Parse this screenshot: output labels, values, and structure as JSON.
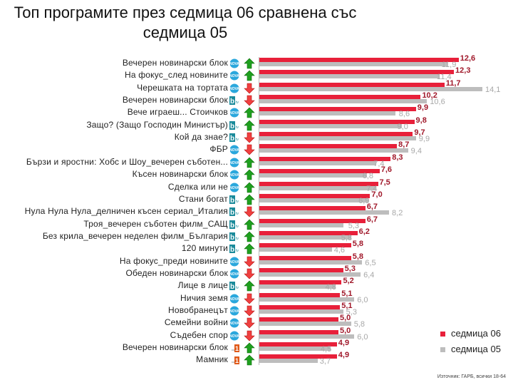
{
  "chart_data": {
    "type": "bar",
    "orientation": "horizontal",
    "title": "Топ програмите през седмица 06 сравнена със седмица 05",
    "title_lines": [
      "Топ програмите през седмица 06 сравнена със",
      "седмица 05"
    ],
    "categories": [
      "Вечерен новинарски блок",
      "На фокус_след новините",
      "Черешката на тортата",
      "Вечерен новинарски блок",
      "Вече играеш... Стоичков",
      "Защо? (Защо Господин Министър)",
      "Кой да знае?",
      "ФБР",
      "Бързи и яростни: Хобс и Шоу_вечерен съботен...",
      "Късен новинарски блок",
      "Сделка или не",
      "Стани богат",
      "Нула Нула Нула_делничен късен сериал_Италия",
      "Троя_вечерен съботен филм_САЩ",
      "Без крила_вечерен неделен филм_България",
      "120 минути",
      "На фокус_преди новините",
      "Обеден новинарски блок",
      "Лице в лице",
      "Ничия земя",
      "Новобранецът",
      "Семейни войни",
      "Съдебен спор",
      "Вечерен новинарски блок",
      "Мамник"
    ],
    "channels": [
      "nova",
      "nova",
      "nova",
      "btv",
      "nova",
      "btv",
      "btv",
      "nova",
      "nova",
      "nova",
      "nova",
      "btv",
      "btv",
      "btv",
      "btv",
      "btv",
      "nova",
      "nova",
      "btv",
      "nova",
      "nova",
      "nova",
      "nova",
      "bnt1",
      "bnt1"
    ],
    "trend": [
      "up",
      "up",
      "down",
      "down",
      "up",
      "up",
      "down",
      "down",
      "up",
      "up",
      "up",
      "up",
      "down",
      "up",
      "up",
      "up",
      "down",
      "down",
      "up",
      "down",
      "down",
      "down",
      "down",
      "up",
      "up"
    ],
    "series": [
      {
        "name": "седмица 06",
        "color": "#e8203a",
        "values": [
          "12,6",
          "12,3",
          "11,7",
          "10,2",
          "9,9",
          "9,8",
          "9,7",
          "8,7",
          "8,3",
          "7,6",
          "7,5",
          "7,0",
          "6,7",
          "6,7",
          "6,2",
          "5,8",
          "5,8",
          "5,3",
          "5,2",
          "5,1",
          "5,1",
          "5,0",
          "5,0",
          "4,9",
          "4,9"
        ]
      },
      {
        "name": "седмица 05",
        "color": "#bdbdbd",
        "values": [
          "11,9",
          "11,4",
          "14,1",
          "10,6",
          "8,6",
          "9,0",
          "9,9",
          "9,4",
          "7,4",
          "6,8",
          "7,4",
          "6,9",
          "8,2",
          "5,3",
          "5,8",
          "4,6",
          "6,5",
          "6,4",
          "4,8",
          "6,0",
          "5,3",
          "5,8",
          "6,0",
          "4,5",
          "3,7"
        ]
      }
    ],
    "legend_position": "bottom-right",
    "grid": false
  },
  "source": "Източник: ГАРБ, всички 18-64"
}
